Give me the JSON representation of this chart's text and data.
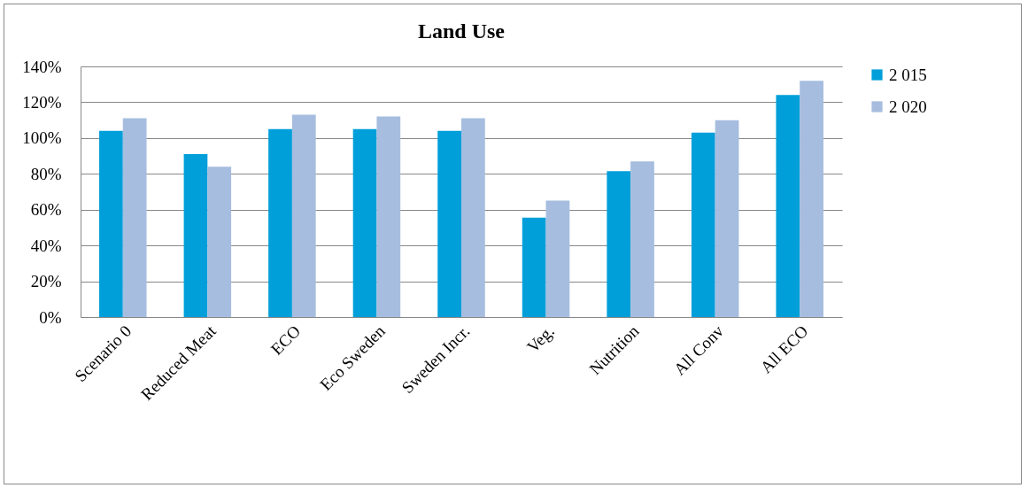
{
  "chart_data": {
    "type": "bar",
    "title": "Land Use",
    "categories": [
      "Scenario 0",
      "Reduced Meat",
      "ECO",
      "Eco Sweden",
      "Sweden Incr.",
      "Veg.",
      "Nutrition",
      "All Conv",
      "All ECO"
    ],
    "series": [
      {
        "name": "2 015",
        "color": "#009fda",
        "values": [
          104,
          91,
          105,
          105,
          104,
          55.5,
          81.5,
          103,
          124
        ]
      },
      {
        "name": "2 020",
        "color": "#a6bddf",
        "values": [
          111,
          84,
          113,
          112,
          111,
          65,
          87,
          110,
          132
        ]
      }
    ],
    "ylim": [
      0,
      140
    ],
    "yticks": [
      {
        "value": 0,
        "label": "0%"
      },
      {
        "value": 20,
        "label": "20%"
      },
      {
        "value": 40,
        "label": "40%"
      },
      {
        "value": 60,
        "label": "60%"
      },
      {
        "value": 80,
        "label": "80%"
      },
      {
        "value": 100,
        "label": "100%"
      },
      {
        "value": 120,
        "label": "120%"
      },
      {
        "value": 140,
        "label": "140%"
      }
    ],
    "grid": "y",
    "legend": "right"
  }
}
